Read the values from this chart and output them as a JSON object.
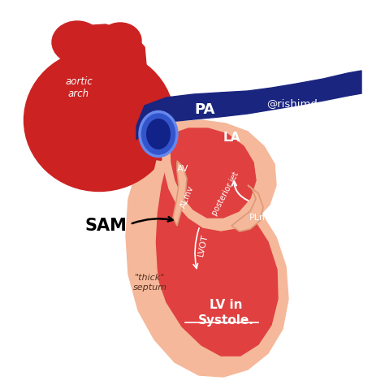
{
  "bg_color": "#ffffff",
  "heart_red": "#cc2222",
  "skin_color": "#f5b89a",
  "inner_red": "#e04040",
  "dark_blue": "#1a2580",
  "labels": {
    "aortic_arch": "aortic\narch",
    "PA": "PA",
    "watermark": "@rishimd",
    "LA": "LA",
    "AV": "AV",
    "ALMV": "ALmv",
    "posterior_jet": "posterior jet",
    "PLMV": "PLmv",
    "LVOT": "LVOT",
    "SAM": "SAM",
    "thick_septum": "\"thick\"\nseptum",
    "LV": "LV in\nSystole."
  }
}
